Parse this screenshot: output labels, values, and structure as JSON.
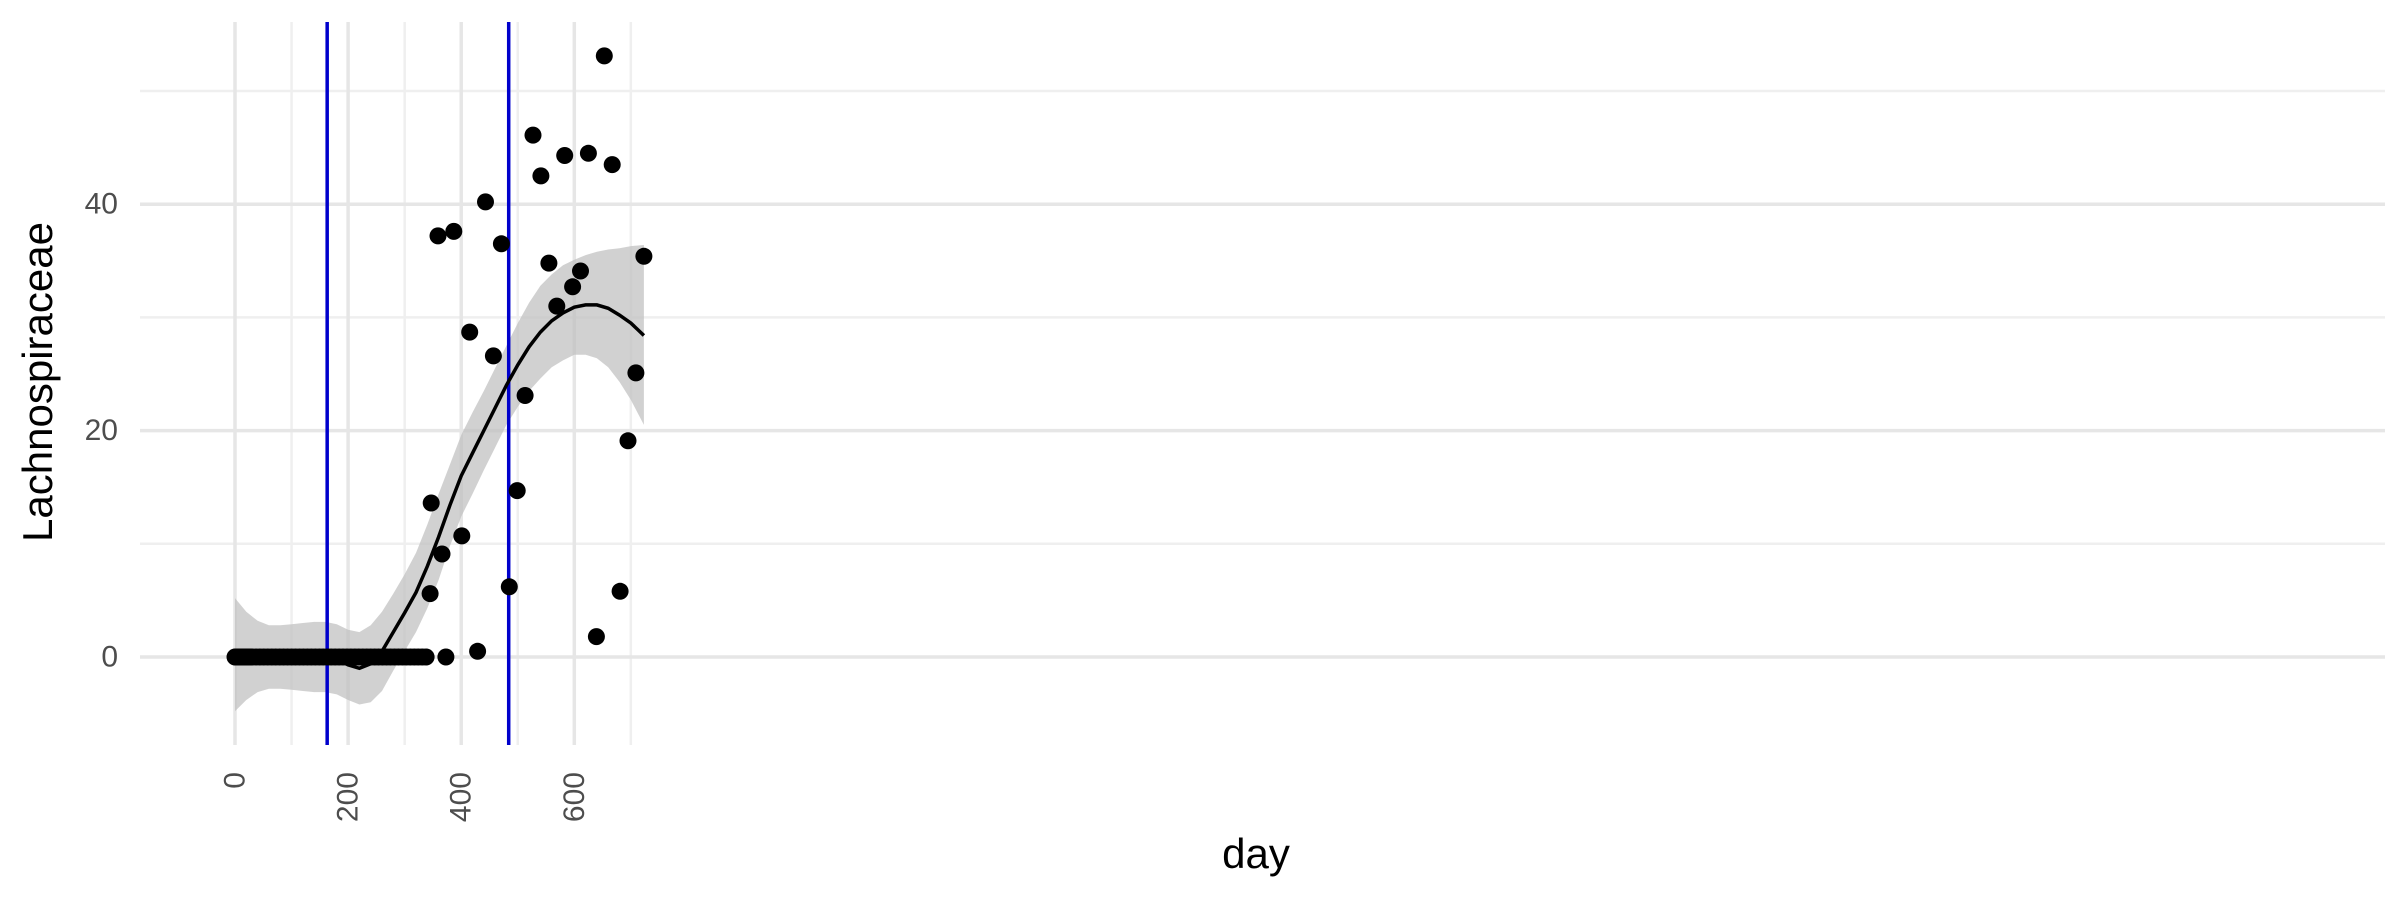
{
  "chart_data": {
    "type": "scatter",
    "title": "",
    "xlabel": "day",
    "ylabel": "Lachnospiraceae",
    "xlim": [
      -35,
      755
    ],
    "ylim": [
      -8,
      55
    ],
    "x_ticks": [
      0,
      200,
      400,
      600
    ],
    "x_tick_labels": [
      "0",
      "200",
      "400",
      "600"
    ],
    "x_minor_ticks": [
      100,
      300,
      500,
      700
    ],
    "y_ticks": [
      0,
      20,
      40
    ],
    "y_tick_labels": [
      "0",
      "20",
      "40"
    ],
    "y_minor_ticks": [
      10,
      30,
      50
    ],
    "grid": true,
    "legend": "none",
    "colors": {
      "points": "#000000",
      "smooth_line": "#000000",
      "confidence_band": "#bfbfbf",
      "vertical_lines": "#0000cc"
    },
    "vertical_lines": [
      163,
      484
    ],
    "series": [
      {
        "points": [
          [
            0,
            0
          ],
          [
            2,
            0
          ],
          [
            4,
            0
          ],
          [
            6,
            0
          ],
          [
            8,
            0
          ],
          [
            10,
            0
          ],
          [
            12,
            0
          ],
          [
            14,
            0
          ],
          [
            16,
            0
          ],
          [
            18,
            0
          ],
          [
            20,
            0
          ],
          [
            22,
            0
          ],
          [
            24,
            0
          ],
          [
            26,
            0
          ],
          [
            28,
            0
          ],
          [
            30,
            0
          ],
          [
            37,
            0
          ],
          [
            44,
            0
          ],
          [
            51,
            0
          ],
          [
            58,
            0
          ],
          [
            65,
            0
          ],
          [
            72,
            0
          ],
          [
            79,
            0
          ],
          [
            86,
            0
          ],
          [
            93,
            0
          ],
          [
            100,
            0
          ],
          [
            107,
            0
          ],
          [
            114,
            0
          ],
          [
            121,
            0
          ],
          [
            128,
            0
          ],
          [
            135,
            0
          ],
          [
            142,
            0
          ],
          [
            149,
            0
          ],
          [
            156,
            0
          ],
          [
            163,
            0
          ],
          [
            170,
            0
          ],
          [
            177,
            0
          ],
          [
            184,
            0
          ],
          [
            191,
            0
          ],
          [
            198,
            0
          ],
          [
            205,
            0
          ],
          [
            212,
            0
          ],
          [
            219,
            0
          ],
          [
            226,
            0
          ],
          [
            233,
            0
          ],
          [
            240,
            0
          ],
          [
            247,
            0
          ],
          [
            254,
            0
          ],
          [
            261,
            0
          ],
          [
            268,
            0
          ],
          [
            275,
            0
          ],
          [
            282,
            0
          ],
          [
            289,
            0
          ],
          [
            296,
            0
          ],
          [
            303,
            0
          ],
          [
            310,
            0
          ],
          [
            317,
            0
          ],
          [
            324,
            0
          ],
          [
            331,
            0
          ],
          [
            338,
            0
          ],
          [
            345,
            5.6
          ],
          [
            347,
            13.6
          ],
          [
            359,
            37.2
          ],
          [
            366,
            9.1
          ],
          [
            373,
            0
          ],
          [
            387,
            37.6
          ],
          [
            401,
            10.7
          ],
          [
            415,
            28.7
          ],
          [
            429,
            0.5
          ],
          [
            443,
            40.2
          ],
          [
            457,
            26.6
          ],
          [
            471,
            36.5
          ],
          [
            485,
            6.2
          ],
          [
            499,
            14.7
          ],
          [
            513,
            23.1
          ],
          [
            527,
            46.1
          ],
          [
            541,
            42.5
          ],
          [
            555,
            34.8
          ],
          [
            569,
            31.0
          ],
          [
            583,
            44.3
          ],
          [
            597,
            32.7
          ],
          [
            611,
            34.1
          ],
          [
            625,
            44.5
          ],
          [
            639,
            1.8
          ],
          [
            653,
            53.1
          ],
          [
            667,
            43.5
          ],
          [
            681,
            5.8
          ],
          [
            695,
            19.1
          ],
          [
            709,
            25.1
          ],
          [
            723,
            35.4
          ]
        ]
      }
    ],
    "smooth": {
      "x": [
        0,
        20,
        40,
        60,
        80,
        100,
        120,
        140,
        160,
        180,
        200,
        220,
        240,
        260,
        280,
        300,
        320,
        340,
        360,
        380,
        400,
        420,
        440,
        460,
        480,
        500,
        520,
        540,
        560,
        580,
        600,
        620,
        640,
        660,
        680,
        700,
        723
      ],
      "fit": [
        0.2,
        0.1,
        0.05,
        0,
        0,
        0,
        0,
        0,
        0,
        -0.2,
        -0.7,
        -1.0,
        -0.6,
        0.5,
        2.2,
        3.9,
        5.7,
        8.0,
        10.6,
        13.4,
        16.0,
        18.0,
        20.0,
        22.0,
        24.0,
        25.8,
        27.4,
        28.7,
        29.7,
        30.4,
        30.9,
        31.1,
        31.1,
        30.8,
        30.2,
        29.5,
        28.4
      ],
      "upper": [
        5.2,
        4.0,
        3.2,
        2.8,
        2.8,
        2.9,
        3.0,
        3.1,
        3.1,
        2.9,
        2.4,
        2.2,
        2.8,
        4.0,
        5.6,
        7.3,
        9.2,
        11.7,
        14.4,
        17.0,
        19.6,
        21.6,
        23.5,
        25.5,
        27.5,
        29.5,
        31.3,
        32.8,
        33.8,
        34.6,
        35.1,
        35.5,
        35.8,
        36.0,
        36.1,
        36.3,
        36.4
      ],
      "lower": [
        -4.8,
        -3.8,
        -3.1,
        -2.8,
        -2.8,
        -2.9,
        -3.0,
        -3.1,
        -3.1,
        -3.3,
        -3.8,
        -4.2,
        -4.0,
        -3.0,
        -1.2,
        0.5,
        2.2,
        4.3,
        6.8,
        9.8,
        12.4,
        14.4,
        16.5,
        18.5,
        20.5,
        22.1,
        23.5,
        24.6,
        25.6,
        26.2,
        26.7,
        26.7,
        26.4,
        25.6,
        24.3,
        22.7,
        20.5
      ]
    }
  }
}
